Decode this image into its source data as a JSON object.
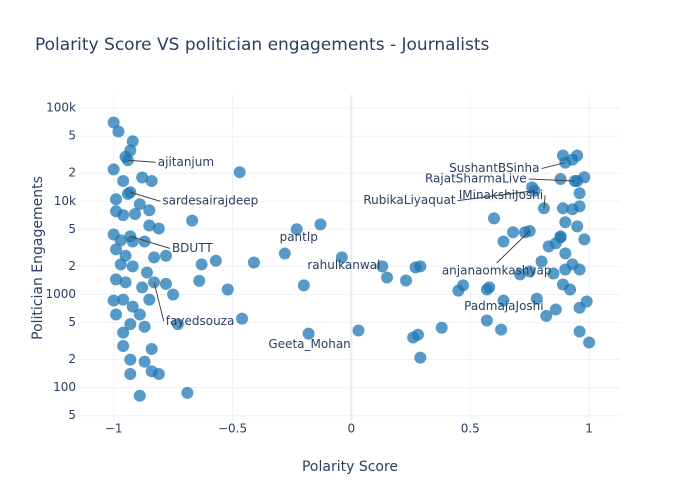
{
  "chart_data": {
    "type": "scatter",
    "title": "Polarity Score VS politician engagements - Journalists",
    "x_label": "Polarity Score",
    "y_label": "Politician Engagements",
    "color": "#1f77b4",
    "log_y": true,
    "grid": true,
    "xlim": [
      -1.15,
      1.13
    ],
    "ylim": [
      45,
      138000
    ],
    "xticks": [
      {
        "value": -1,
        "label": "−1"
      },
      {
        "value": -0.5,
        "label": "−0.5"
      },
      0,
      0.5,
      1
    ],
    "yticks": [
      {
        "value": 50,
        "label": "5"
      },
      100,
      {
        "value": 200,
        "label": "2"
      },
      {
        "value": 500,
        "label": "5"
      },
      1000,
      {
        "value": 2000,
        "label": "2"
      },
      {
        "value": 5000,
        "label": "5"
      },
      {
        "value": 10000,
        "label": "10k"
      },
      {
        "value": 20000,
        "label": "2"
      },
      {
        "value": 50000,
        "label": "5"
      },
      {
        "value": 100000,
        "label": "100k"
      }
    ],
    "x": [
      -1.0,
      -0.98,
      -0.92,
      -0.95,
      -0.93,
      -1.0,
      -0.88,
      -0.84,
      -0.96,
      -0.99,
      -0.94,
      -0.89,
      -0.85,
      -0.99,
      -0.96,
      -0.91,
      -0.81,
      -0.85,
      -1.0,
      -0.97,
      -0.92,
      -0.87,
      -0.99,
      -0.95,
      -0.78,
      -0.83,
      -0.97,
      -0.92,
      -0.86,
      -0.99,
      -0.95,
      -0.78,
      -0.88,
      -0.75,
      -1.0,
      -0.96,
      -0.85,
      -0.92,
      -0.89,
      -0.99,
      -0.93,
      -0.96,
      -0.87,
      -0.96,
      -0.84,
      -0.93,
      -0.87,
      -0.84,
      -0.93,
      -0.81,
      -0.89,
      -0.73,
      -0.69,
      -0.47,
      -0.67,
      -0.63,
      -0.57,
      -0.64,
      -0.52,
      -0.46,
      -0.41,
      -0.28,
      -0.13,
      -0.2,
      0.03,
      0.13,
      0.15,
      0.23,
      0.27,
      0.29,
      0.26,
      0.28,
      0.29,
      0.38,
      0.45,
      0.47,
      0.64,
      0.58,
      0.57,
      0.63,
      0.6,
      0.64,
      0.68,
      0.73,
      0.71,
      0.75,
      0.78,
      0.82,
      0.86,
      0.8,
      0.83,
      0.88,
      0.86,
      0.9,
      0.93,
      0.96,
      0.85,
      0.89,
      0.92,
      0.98,
      0.95,
      0.9,
      0.89,
      0.93,
      0.96,
      0.96,
      0.98,
      0.95,
      0.88,
      0.89,
      0.95,
      0.93,
      0.96,
      1.0,
      0.99,
      0.96,
      0.76,
      0.9,
      0.88,
      -0.94,
      -0.93,
      -0.93,
      -0.83,
      -0.23,
      -0.04,
      -0.18,
      0.9,
      0.94,
      0.77,
      0.81,
      0.75,
      0.57
    ],
    "values": [
      70000,
      56000,
      44000,
      30000,
      35000,
      22000,
      18000,
      16500,
      16500,
      10500,
      12000,
      9300,
      8000,
      7800,
      7100,
      7300,
      5100,
      5500,
      4400,
      3800,
      3700,
      3700,
      3050,
      2600,
      2600,
      2500,
      2100,
      2000,
      1720,
      1450,
      1350,
      1300,
      1190,
      1000,
      860,
      880,
      880,
      740,
      610,
      610,
      480,
      390,
      450,
      280,
      260,
      200,
      190,
      150,
      140,
      140,
      82,
      480,
      88,
      20500,
      6200,
      2100,
      2300,
      1400,
      1130,
      550,
      2200,
      2750,
      5650,
      1250,
      410,
      2000,
      1520,
      1410,
      1950,
      2000,
      345,
      370,
      210,
      440,
      1100,
      1250,
      860,
      1190,
      525,
      420,
      6550,
      3700,
      4650,
      4650,
      1640,
      1770,
      900,
      590,
      690,
      2260,
      3280,
      4100,
      3540,
      2760,
      2100,
      1850,
      1680,
      1280,
      1130,
      3900,
      5380,
      5950,
      8400,
      8200,
      8800,
      12200,
      18100,
      16500,
      17300,
      31000,
      31000,
      28000,
      400,
      305,
      840,
      720,
      14100,
      1850,
      4200,
      27500,
      12500,
      4200,
      1350,
      5000,
      2500,
      380,
      26000,
      16500,
      13000,
      8400,
      4800,
      1130
    ],
    "annotations": [
      {
        "text": "ajitanjum",
        "x": -0.94,
        "y": 27500
      },
      {
        "text": "sardesairajdeep",
        "x": -0.93,
        "y": 12500
      },
      {
        "text": "BDUTT",
        "x": -0.93,
        "y": 4200
      },
      {
        "text": "fayedsouza",
        "x": -0.83,
        "y": 1350
      },
      {
        "text": "pantlp",
        "x": -0.23,
        "y": 5000
      },
      {
        "text": "rahulkanwal",
        "x": -0.04,
        "y": 2500
      },
      {
        "text": "Geeta_Mohan",
        "x": -0.18,
        "y": 380
      },
      {
        "text": "SushantBSinha",
        "x": 0.9,
        "y": 26000
      },
      {
        "text": "RajatSharmaLive",
        "x": 0.94,
        "y": 16500
      },
      {
        "text": "RubikaLiyaquat",
        "x": 0.77,
        "y": 13000
      },
      {
        "text": "IMinakshiJoshi",
        "x": 0.81,
        "y": 8400
      },
      {
        "text": "anjanaomkashyap",
        "x": 0.75,
        "y": 4800
      },
      {
        "text": "PadmajaJoshi",
        "x": 0.57,
        "y": 1130
      }
    ]
  }
}
